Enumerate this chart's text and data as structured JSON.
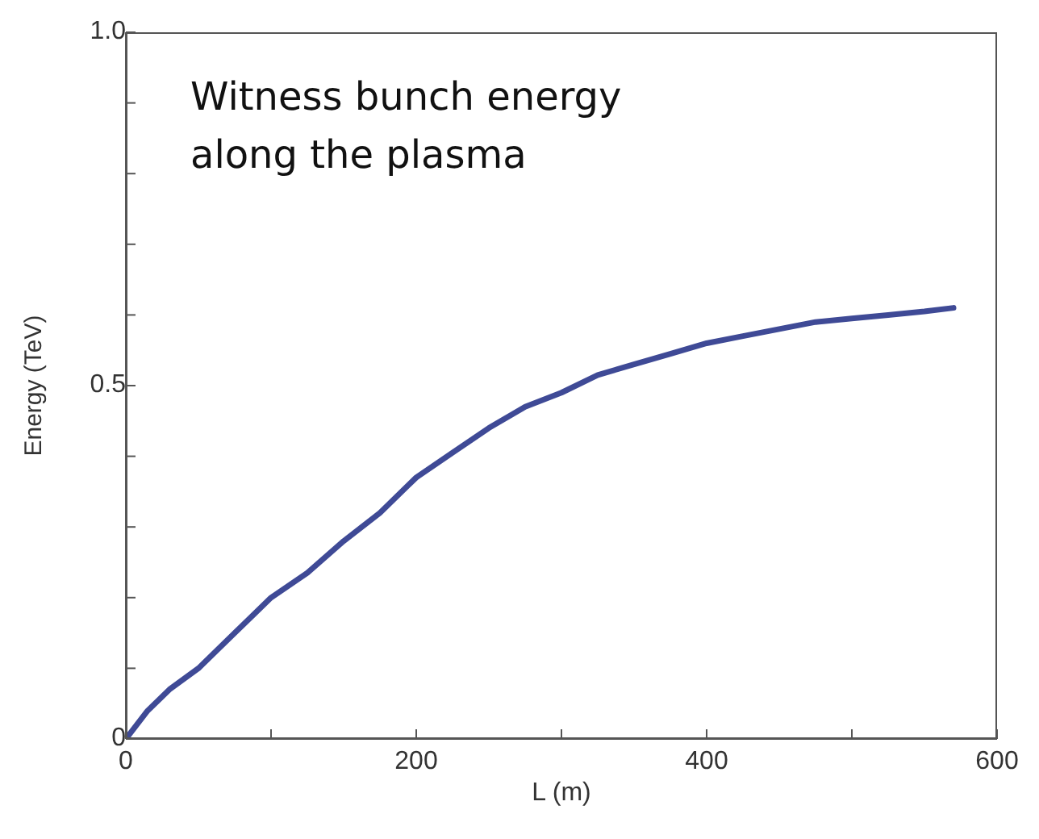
{
  "chart_data": {
    "type": "line",
    "title": "Witness bunch energy along the plasma",
    "xlabel": "L (m)",
    "ylabel": "Energy (TeV)",
    "x": [
      0,
      15,
      30,
      50,
      75,
      100,
      125,
      150,
      175,
      200,
      225,
      250,
      275,
      300,
      325,
      350,
      375,
      400,
      425,
      450,
      475,
      500,
      525,
      550,
      570
    ],
    "series": [
      {
        "color": "#3f4a96",
        "values": [
          0,
          0.04,
          0.07,
          0.1,
          0.15,
          0.2,
          0.235,
          0.28,
          0.32,
          0.37,
          0.405,
          0.44,
          0.47,
          0.49,
          0.515,
          0.53,
          0.545,
          0.56,
          0.57,
          0.58,
          0.59,
          0.595,
          0.6,
          0.605,
          0.61
        ]
      }
    ],
    "xlim": [
      0,
      600
    ],
    "xticks": [
      0,
      {
        "value": 100,
        "label": null
      },
      200,
      {
        "value": 300,
        "label": null
      },
      400,
      {
        "value": 500,
        "label": null
      },
      600
    ],
    "ylim": [
      0,
      1
    ],
    "yticks": [
      0,
      {
        "value": 0.1,
        "label": null
      },
      {
        "value": 0.2,
        "label": null
      },
      {
        "value": 0.3,
        "label": null
      },
      {
        "value": 0.4,
        "label": null
      },
      0.5,
      {
        "value": 0.6,
        "label": null
      },
      {
        "value": 0.7,
        "label": null
      },
      {
        "value": 0.8,
        "label": null
      },
      {
        "value": 0.9,
        "label": null
      },
      {
        "value": 1,
        "label": "1.0"
      }
    ],
    "grid": false,
    "legend": false,
    "marker": "none",
    "line_style": "solid"
  }
}
